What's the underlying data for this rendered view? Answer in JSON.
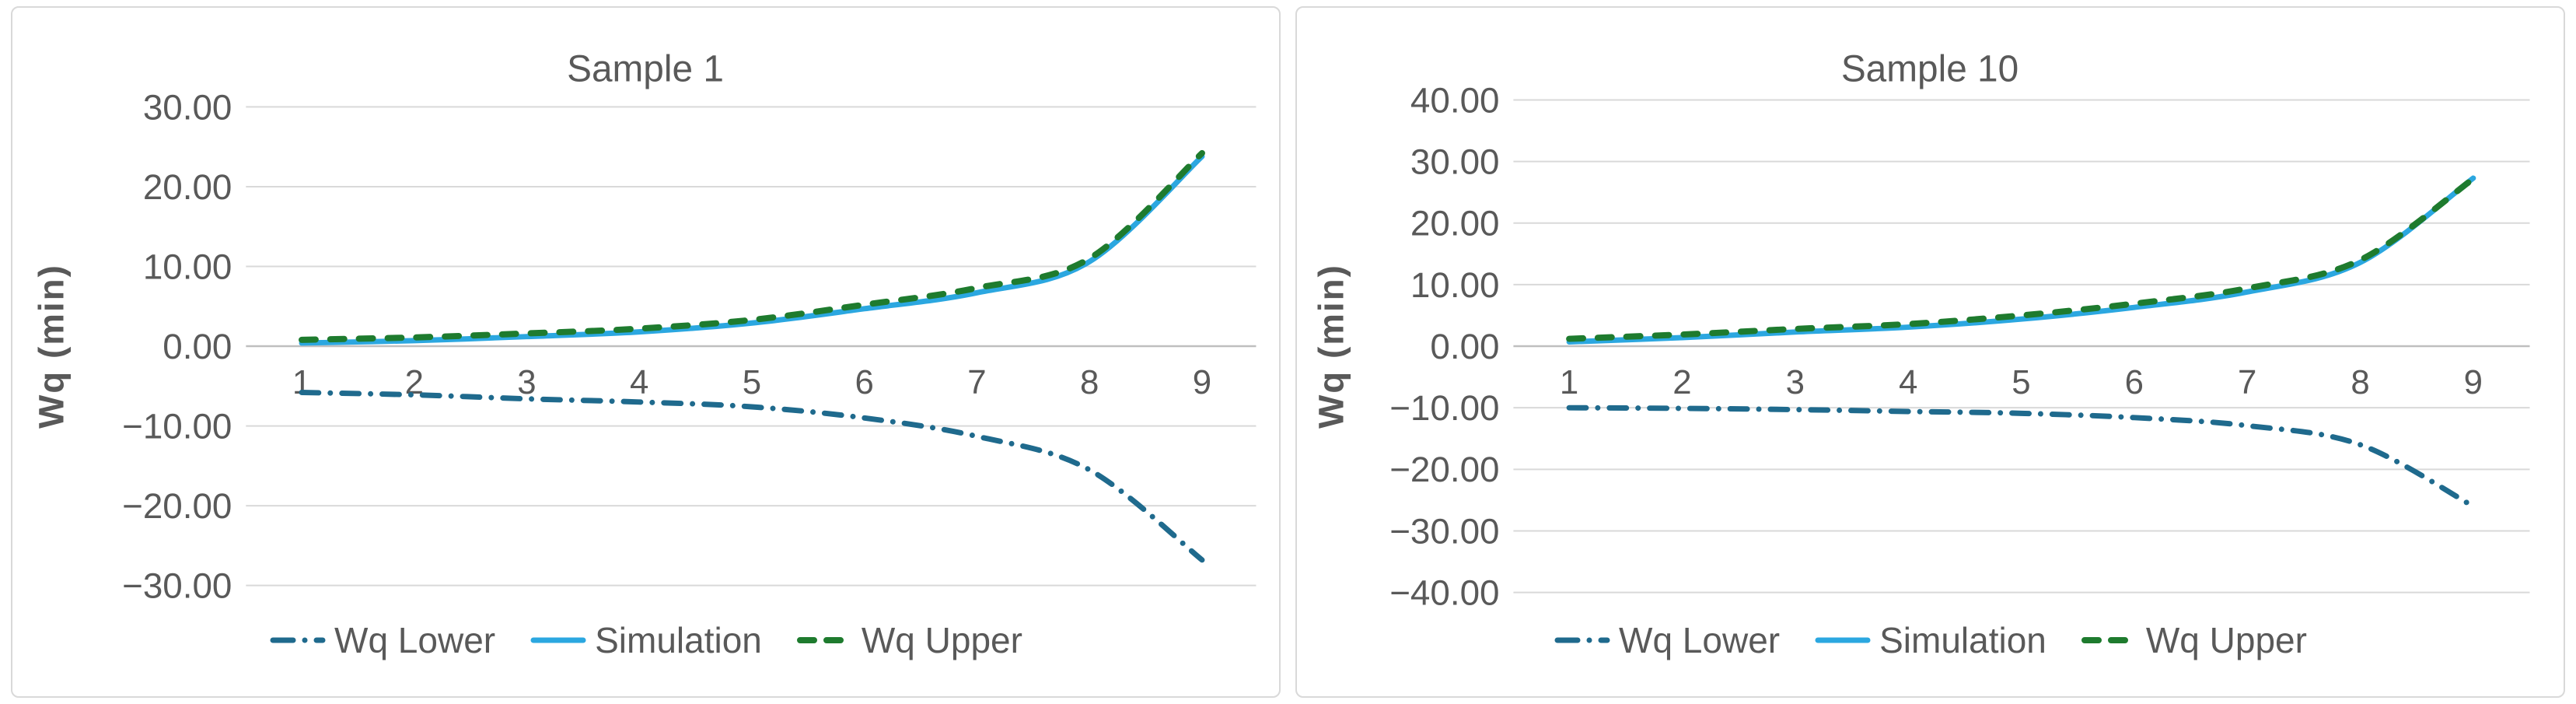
{
  "colors": {
    "wq_lower": "#1F6A8D",
    "simulation": "#2BA7E0",
    "wq_upper": "#1E7B2E",
    "text": "#595959",
    "gridline": "#D9D9D9",
    "axis_line": "#BFBFBF",
    "panel_border": "#D9D9D9",
    "background": "#FFFFFF"
  },
  "legend": {
    "items": [
      {
        "label": "Wq Lower",
        "style": "dash-dot"
      },
      {
        "label": "Simulation",
        "style": "solid"
      },
      {
        "label": "Wq Upper",
        "style": "dash"
      }
    ]
  },
  "chart_data": [
    {
      "type": "line",
      "title": "Sample 1",
      "xlabel": "",
      "ylabel": "Wq (min)",
      "categories": [
        "1",
        "2",
        "3",
        "4",
        "5",
        "6",
        "7",
        "8",
        "9"
      ],
      "series": [
        {
          "name": "Wq Lower",
          "style": "dash-dot",
          "color_key": "wq_lower",
          "values": [
            -5.8,
            -6.1,
            -6.6,
            -7.0,
            -7.6,
            -9.0,
            -11.3,
            -15.5,
            -26.8
          ]
        },
        {
          "name": "Simulation",
          "style": "solid",
          "color_key": "simulation",
          "values": [
            0.4,
            0.7,
            1.2,
            1.8,
            2.9,
            4.7,
            6.7,
            10.6,
            23.8
          ]
        },
        {
          "name": "Wq Upper",
          "style": "dash",
          "color_key": "wq_upper",
          "values": [
            0.8,
            1.1,
            1.6,
            2.2,
            3.3,
            5.2,
            7.3,
            11.0,
            24.2
          ]
        }
      ],
      "ylim": [
        -30,
        30
      ],
      "ytick_step": 10,
      "yticks": [
        30,
        20,
        10,
        0,
        -10,
        -20,
        -30
      ],
      "ytick_labels": [
        "30.00",
        "20.00",
        "10.00",
        "0.00",
        "−10.00",
        "−20.00",
        "−30.00"
      ],
      "grid": true,
      "smooth": true,
      "legend_position": "bottom"
    },
    {
      "type": "line",
      "title": "Sample 10",
      "xlabel": "",
      "ylabel": "Wq (min)",
      "categories": [
        "1",
        "2",
        "3",
        "4",
        "5",
        "6",
        "7",
        "8",
        "9"
      ],
      "series": [
        {
          "name": "Wq Lower",
          "style": "dash-dot",
          "color_key": "wq_lower",
          "values": [
            -10.0,
            -10.1,
            -10.3,
            -10.6,
            -10.9,
            -11.6,
            -12.9,
            -16.0,
            -26.0
          ]
        },
        {
          "name": "Simulation",
          "style": "solid",
          "color_key": "simulation",
          "values": [
            0.7,
            1.4,
            2.3,
            3.1,
            4.4,
            6.3,
            8.8,
            13.6,
            27.3
          ]
        },
        {
          "name": "Wq Upper",
          "style": "dash",
          "color_key": "wq_upper",
          "values": [
            1.2,
            1.9,
            2.8,
            3.6,
            5.0,
            6.9,
            9.4,
            14.0,
            27.2
          ]
        }
      ],
      "ylim": [
        -40,
        40
      ],
      "ytick_step": 10,
      "yticks": [
        40,
        30,
        20,
        10,
        0,
        -10,
        -20,
        -30,
        -40
      ],
      "ytick_labels": [
        "40.00",
        "30.00",
        "20.00",
        "10.00",
        "0.00",
        "−10.00",
        "−20.00",
        "−30.00",
        "−40.00"
      ],
      "grid": true,
      "smooth": true,
      "legend_position": "bottom"
    }
  ]
}
